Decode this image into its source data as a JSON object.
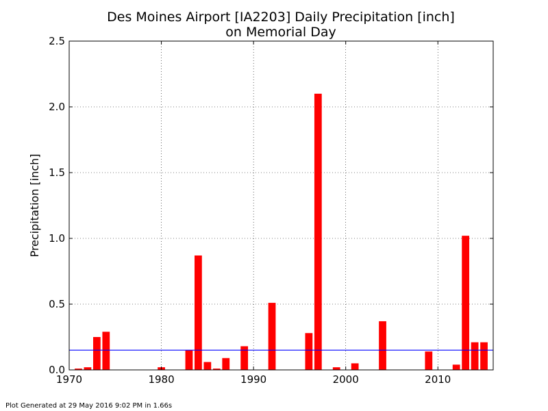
{
  "chart_data": {
    "type": "bar",
    "title_lines": [
      "Des Moines Airport [IA2203] Daily Precipitation [inch]",
      "on Memorial Day"
    ],
    "ylabel": "Precipitation [inch]",
    "xlabel": "",
    "xlim": [
      1970,
      2016
    ],
    "ylim": [
      0,
      2.5
    ],
    "x_ticks": [
      1970,
      1980,
      1990,
      2000,
      2010
    ],
    "x_tick_labels": [
      "1970",
      "1980",
      "1990",
      "2000",
      "2010"
    ],
    "y_ticks": [
      0,
      0.5,
      1.0,
      1.5,
      2.0,
      2.5
    ],
    "y_tick_labels": [
      "0.0",
      "0.5",
      "1.0",
      "1.5",
      "2.0",
      "2.5"
    ],
    "grid": true,
    "bar_color": "#ff0000",
    "reference_line": {
      "value": 0.15,
      "color": "#0000ff"
    },
    "x": [
      1971,
      1972,
      1973,
      1974,
      1975,
      1976,
      1977,
      1978,
      1979,
      1980,
      1981,
      1982,
      1983,
      1984,
      1985,
      1986,
      1987,
      1988,
      1989,
      1990,
      1991,
      1992,
      1993,
      1994,
      1995,
      1996,
      1997,
      1998,
      1999,
      2000,
      2001,
      2002,
      2003,
      2004,
      2005,
      2006,
      2007,
      2008,
      2009,
      2010,
      2011,
      2012,
      2013,
      2014,
      2015
    ],
    "values": [
      0.01,
      0.02,
      0.25,
      0.29,
      0,
      0,
      0,
      0,
      0,
      0.02,
      0,
      0,
      0.15,
      0.87,
      0.06,
      0.01,
      0.09,
      0,
      0.18,
      0,
      0,
      0.51,
      0,
      0,
      0,
      0.28,
      2.1,
      0,
      0.02,
      0,
      0.05,
      0,
      0,
      0.37,
      0,
      0,
      0,
      0,
      0.14,
      0,
      0,
      0.04,
      1.02,
      0.21,
      0.21
    ]
  },
  "footer": "Plot Generated at 29 May 2016 9:02 PM in 1.66s"
}
